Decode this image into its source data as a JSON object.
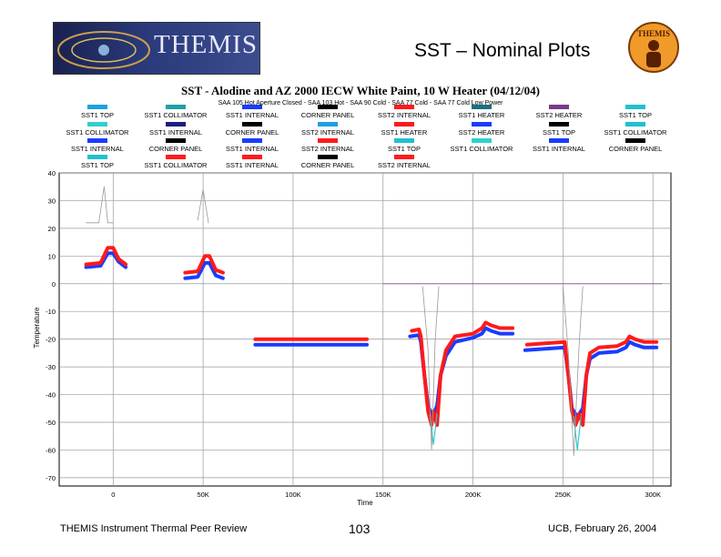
{
  "header": {
    "logo_text": "THEMIS",
    "slide_title": "SST – Nominal Plots",
    "badge_text": "THEMIS"
  },
  "footer": {
    "left": "THEMIS Instrument Thermal Peer Review",
    "center": "103",
    "right": "UCB, February 26, 2004"
  },
  "colors": {
    "red": "#ff1a1a",
    "blue": "#1a3cff",
    "cyan": "#30c8d0",
    "grid": "#999999",
    "purple": "#9966aa"
  },
  "chart_data": {
    "type": "line",
    "title": "SST - Alodine and AZ 2000 IECW White Paint, 10 W Heater (04/12/04)",
    "subtitle": "SAA 105 Hot Aperture Closed - SAA 103 Hot - SAA 90 Cold - SAA 77 Cold - SAA 77 Cold Low Power",
    "xlabel": "Time",
    "ylabel": "Temperature",
    "xlim": [
      -30000,
      310000
    ],
    "ylim": [
      -73,
      40
    ],
    "xticks": [
      0,
      50000,
      100000,
      150000,
      200000,
      250000,
      300000
    ],
    "xtick_labels": [
      "0",
      "50K",
      "100K",
      "150K",
      "200K",
      "250K",
      "300K"
    ],
    "yticks": [
      40,
      30,
      20,
      10,
      0,
      -10,
      -20,
      -30,
      -40,
      -50,
      -60,
      -70
    ],
    "ytick_labels": [
      "40",
      "30",
      "20",
      "10",
      "0",
      "-10",
      "-20",
      "-30",
      "-40",
      "-50",
      "-60",
      "-70"
    ],
    "legend": [
      {
        "label": "SST1 TOP",
        "color": "#20a0e0"
      },
      {
        "label": "SST1 COLLIMATOR",
        "color": "#20a0a8"
      },
      {
        "label": "SST1 INTERNAL",
        "color": "#1a3cff"
      },
      {
        "label": "CORNER PANEL",
        "color": "#000000"
      },
      {
        "label": "SST2 INTERNAL",
        "color": "#ff1a1a"
      },
      {
        "label": "SST1 HEATER",
        "color": "#1a7080"
      },
      {
        "label": "SST2 HEATER",
        "color": "#7a3a8a"
      },
      {
        "label": "SST1 TOP",
        "color": "#20c0d0"
      },
      {
        "label": "SST1 COLLIMATOR",
        "color": "#30d0d0"
      },
      {
        "label": "SST1 INTERNAL",
        "color": "#1a2080"
      },
      {
        "label": "CORNER PANEL",
        "color": "#000000"
      },
      {
        "label": "SST2 INTERNAL",
        "color": "#20a0e0"
      },
      {
        "label": "SST1 HEATER",
        "color": "#ff1a1a"
      },
      {
        "label": "SST2 HEATER",
        "color": "#1a3cff"
      },
      {
        "label": "SST1 TOP",
        "color": "#000000"
      },
      {
        "label": "SST1 COLLIMATOR",
        "color": "#20c0d0"
      },
      {
        "label": "SST1 INTERNAL",
        "color": "#1a3cff"
      },
      {
        "label": "CORNER PANEL",
        "color": "#000000"
      },
      {
        "label": "SST1 INTERNAL",
        "color": "#1a3cff"
      },
      {
        "label": "SST2 INTERNAL",
        "color": "#ff1a1a"
      },
      {
        "label": "SST1 TOP",
        "color": "#20c0d0"
      },
      {
        "label": "SST1 COLLIMATOR",
        "color": "#30d0d0"
      },
      {
        "label": "SST1 INTERNAL",
        "color": "#1a3cff"
      },
      {
        "label": "CORNER PANEL",
        "color": "#000000"
      },
      {
        "label": "SST1 TOP",
        "color": "#20c0d0"
      },
      {
        "label": "SST1 COLLIMATOR",
        "color": "#ff1a1a"
      },
      {
        "label": "SST1 INTERNAL",
        "color": "#ff1a1a"
      },
      {
        "label": "CORNER PANEL",
        "color": "#000000"
      },
      {
        "label": "SST2 INTERNAL",
        "color": "#ff1a1a"
      }
    ],
    "series": [
      {
        "name": "SST1 INTERNAL",
        "color": "#1a3cff",
        "width": 4,
        "segments": [
          [
            [
              -15000,
              6
            ],
            [
              -7000,
              6.5
            ],
            [
              -3000,
              11
            ],
            [
              0,
              11
            ],
            [
              3000,
              8
            ],
            [
              7000,
              6
            ]
          ],
          [
            [
              40000,
              2
            ],
            [
              47000,
              2.5
            ],
            [
              51000,
              7.5
            ],
            [
              53500,
              7.5
            ],
            [
              57000,
              3
            ],
            [
              61000,
              2
            ]
          ],
          [
            [
              79000,
              -22
            ],
            [
              90000,
              -22
            ],
            [
              110000,
              -22
            ],
            [
              130000,
              -22
            ],
            [
              141000,
              -22
            ]
          ],
          [
            [
              165000,
              -19
            ],
            [
              170000,
              -18.5
            ],
            [
              171000,
              -21
            ],
            [
              173000,
              -33
            ],
            [
              175000,
              -44
            ],
            [
              177500,
              -48
            ],
            [
              180000,
              -44
            ],
            [
              182000,
              -33
            ],
            [
              185000,
              -26
            ],
            [
              190000,
              -21
            ],
            [
              200000,
              -19.5
            ],
            [
              205000,
              -18
            ],
            [
              207000,
              -16
            ],
            [
              210000,
              -17
            ],
            [
              215000,
              -18
            ],
            [
              222000,
              -18
            ]
          ],
          [
            [
              229000,
              -24
            ],
            [
              240000,
              -23.5
            ],
            [
              251000,
              -23
            ],
            [
              253000,
              -33
            ],
            [
              255000,
              -45
            ],
            [
              258000,
              -48
            ],
            [
              261000,
              -45
            ],
            [
              263000,
              -33
            ],
            [
              265000,
              -27
            ],
            [
              270000,
              -25
            ],
            [
              280000,
              -24.5
            ],
            [
              285000,
              -23
            ],
            [
              287000,
              -21
            ],
            [
              290000,
              -22
            ],
            [
              295000,
              -23
            ],
            [
              302000,
              -23
            ]
          ]
        ]
      },
      {
        "name": "SST2 INTERNAL",
        "color": "#ff1a1a",
        "width": 4,
        "segments": [
          [
            [
              -15000,
              7
            ],
            [
              -7000,
              7.5
            ],
            [
              -3000,
              13
            ],
            [
              0,
              13
            ],
            [
              3000,
              9
            ],
            [
              7000,
              7
            ]
          ],
          [
            [
              40000,
              4
            ],
            [
              47000,
              4.5
            ],
            [
              51000,
              10
            ],
            [
              53500,
              10
            ],
            [
              57000,
              5
            ],
            [
              61000,
              4
            ]
          ],
          [
            [
              79000,
              -20
            ],
            [
              90000,
              -20
            ],
            [
              110000,
              -20
            ],
            [
              130000,
              -20
            ],
            [
              141000,
              -20
            ]
          ],
          [
            [
              166000,
              -17
            ],
            [
              170000,
              -16.5
            ],
            [
              171000,
              -19
            ],
            [
              173000,
              -33
            ],
            [
              175000,
              -46
            ],
            [
              177000,
              -51
            ],
            [
              178000,
              -46
            ],
            [
              180000,
              -51
            ],
            [
              182000,
              -33
            ],
            [
              185000,
              -24
            ],
            [
              190000,
              -19
            ],
            [
              200000,
              -18
            ],
            [
              205000,
              -16
            ],
            [
              207000,
              -14
            ],
            [
              210000,
              -15
            ],
            [
              215000,
              -16
            ],
            [
              222000,
              -16
            ]
          ],
          [
            [
              230000,
              -22
            ],
            [
              240000,
              -21.5
            ],
            [
              251000,
              -21
            ],
            [
              253000,
              -33
            ],
            [
              255000,
              -46
            ],
            [
              257000,
              -51
            ],
            [
              259000,
              -47
            ],
            [
              261000,
              -51
            ],
            [
              263000,
              -33
            ],
            [
              265000,
              -25
            ],
            [
              270000,
              -23
            ],
            [
              280000,
              -22.5
            ],
            [
              285000,
              -21
            ],
            [
              287000,
              -19
            ],
            [
              290000,
              -20
            ],
            [
              295000,
              -21
            ],
            [
              302000,
              -21
            ]
          ]
        ]
      },
      {
        "name": "SST1 COLLIMATOR",
        "color": "#30c8d0",
        "width": 1.2,
        "segments": [
          [
            [
              176000,
              -47
            ],
            [
              178000,
              -58
            ],
            [
              180000,
              -47
            ]
          ],
          [
            [
              256000,
              -48
            ],
            [
              258000,
              -60
            ],
            [
              260000,
              -48
            ]
          ]
        ]
      },
      {
        "name": "SST2 HEATER",
        "color": "#9966aa",
        "width": 1,
        "segments": [
          [
            [
              150000,
              0
            ],
            [
              305000,
              0
            ]
          ]
        ]
      },
      {
        "name": "CORNER PANEL",
        "color": "#999999",
        "width": 0.8,
        "segments": [
          [
            [
              -15000,
              22
            ],
            [
              -8000,
              22
            ],
            [
              -5000,
              35
            ],
            [
              -3000,
              22
            ],
            [
              0,
              22
            ]
          ],
          [
            [
              47000,
              23
            ],
            [
              50000,
              34
            ],
            [
              53000,
              22
            ]
          ],
          [
            [
              172000,
              -1
            ],
            [
              175000,
              -24
            ],
            [
              177000,
              -60
            ],
            [
              179000,
              -20
            ],
            [
              181000,
              -1
            ]
          ],
          [
            [
              250000,
              -1
            ],
            [
              253000,
              -25
            ],
            [
              256000,
              -62
            ],
            [
              259000,
              -22
            ],
            [
              261000,
              -1
            ]
          ]
        ]
      }
    ]
  }
}
